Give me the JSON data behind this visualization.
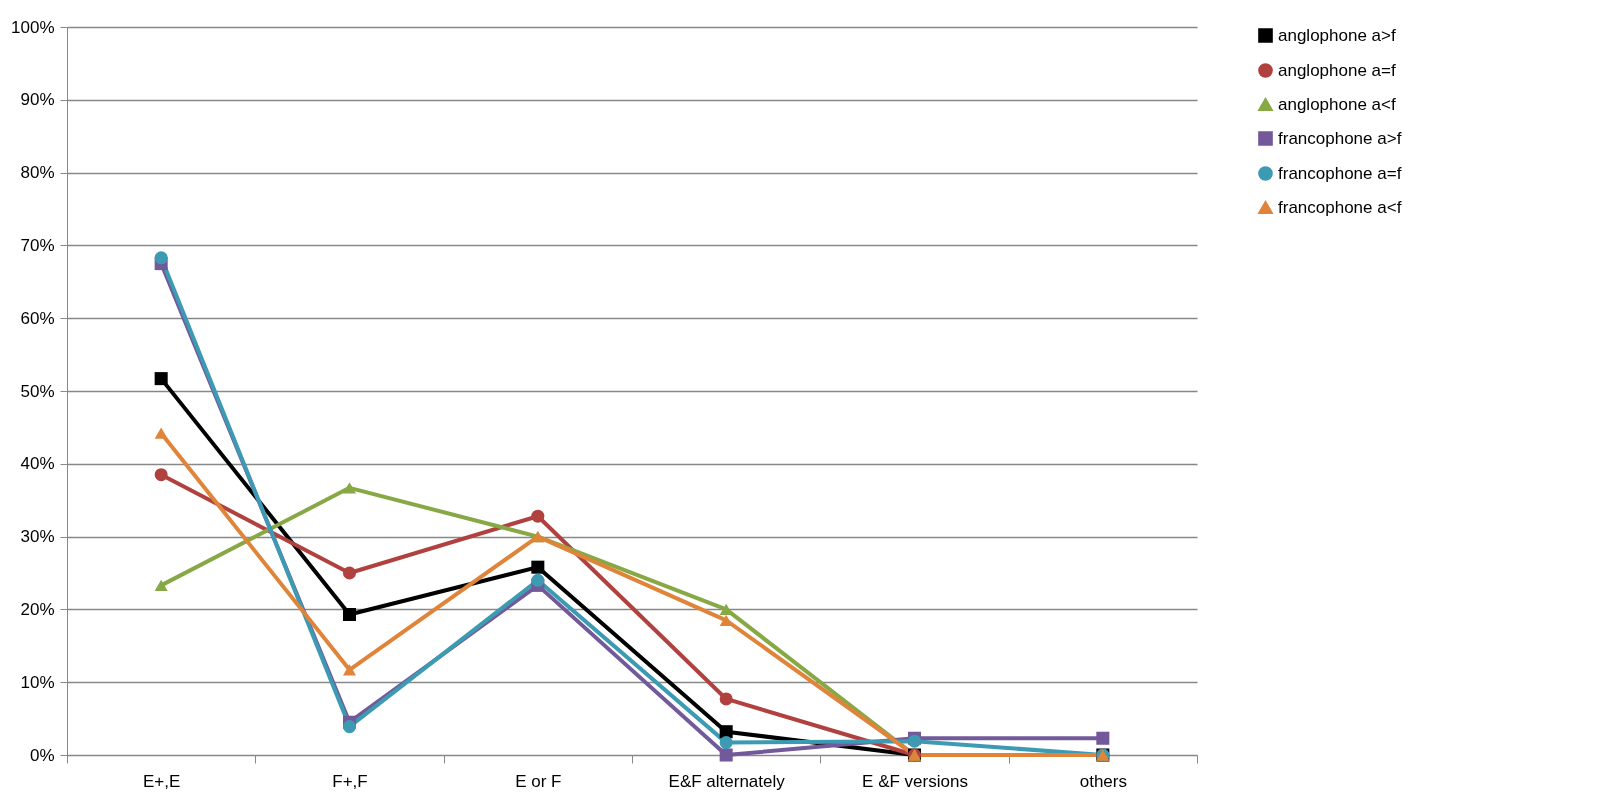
{
  "chart_data": {
    "type": "line",
    "categories": [
      "E+,E",
      "F+,F",
      "E or F",
      "E&F alternately",
      "E &F versions",
      "others"
    ],
    "series": [
      {
        "name": "anglophone a>f",
        "color": "#000000",
        "marker": "square",
        "values": [
          51.7,
          19.3,
          25.8,
          3.2,
          0,
          0
        ]
      },
      {
        "name": "anglophone a=f",
        "color": "#b0413e",
        "marker": "circle",
        "values": [
          38.5,
          25,
          32.8,
          7.7,
          0,
          0
        ]
      },
      {
        "name": "anglophone a<f",
        "color": "#86a845",
        "marker": "triangle",
        "values": [
          23.3,
          36.7,
          30,
          20,
          0,
          0
        ]
      },
      {
        "name": "francophone a>f",
        "color": "#72599a",
        "marker": "square",
        "values": [
          67.5,
          4.5,
          23.3,
          0,
          2.3,
          2.3
        ]
      },
      {
        "name": "francophone a=f",
        "color": "#3d9ab3",
        "marker": "circle",
        "values": [
          68.3,
          3.9,
          24,
          1.7,
          1.9,
          0
        ]
      },
      {
        "name": "francophone a<f",
        "color": "#e0843a",
        "marker": "triangle",
        "values": [
          44.2,
          11.7,
          30,
          18.5,
          0,
          0
        ]
      }
    ],
    "ylim": [
      0,
      100
    ],
    "yticks": [
      {
        "value": 0,
        "label": "0%"
      },
      {
        "value": 10,
        "label": "10%"
      },
      {
        "value": 20,
        "label": "20%"
      },
      {
        "value": 30,
        "label": "30%"
      },
      {
        "value": 40,
        "label": "40%"
      },
      {
        "value": 50,
        "label": "50%"
      },
      {
        "value": 60,
        "label": "60%"
      },
      {
        "value": 70,
        "label": "70%"
      },
      {
        "value": 80,
        "label": "80%"
      },
      {
        "value": 90,
        "label": "90%"
      },
      {
        "value": 100,
        "label": "100%"
      }
    ],
    "grid": "y",
    "legend": "right",
    "line_style": "solid"
  }
}
